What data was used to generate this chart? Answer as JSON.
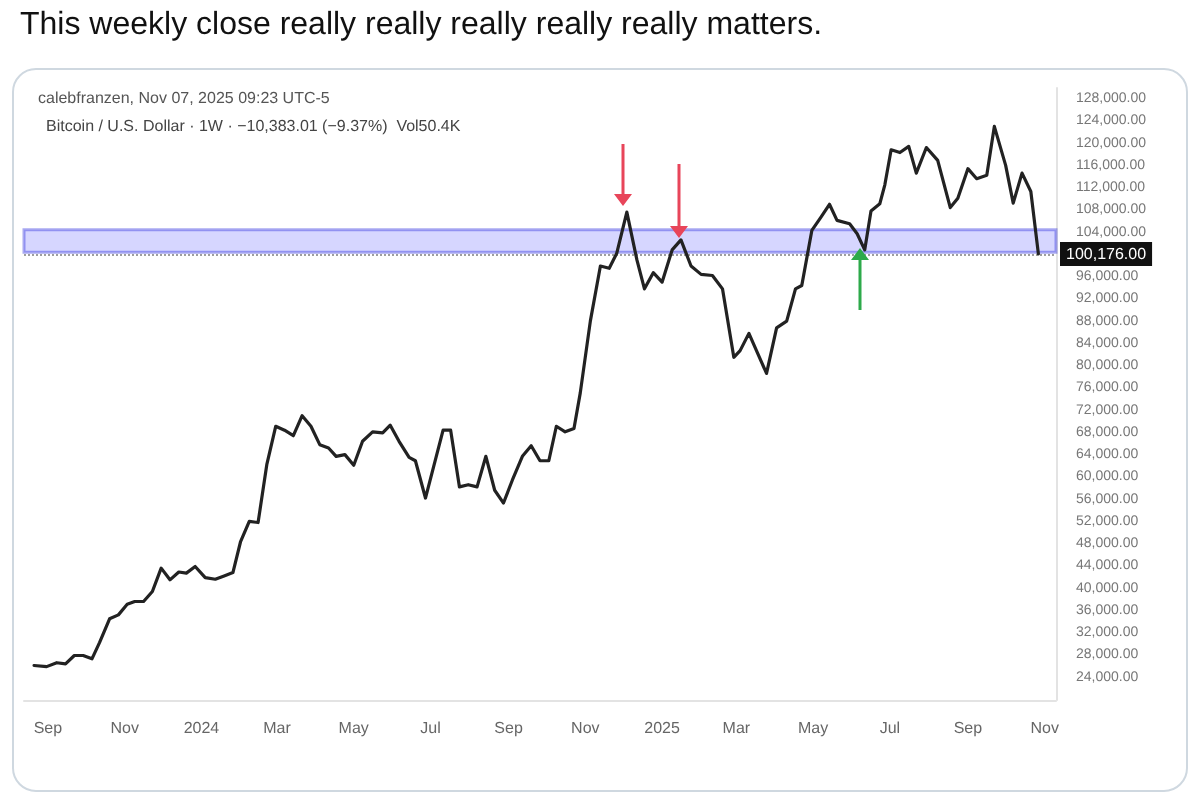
{
  "chart_data": {
    "type": "line",
    "title": "This weekly close really really really really really matters.",
    "subtitle": "Bitcoin / U.S. Dollar · 1W · −10,383.01 (−9.37%)  Vol50.4K",
    "annotations": [
      "calebfranzen, Nov 07, 2025 09:23 UTC-5"
    ],
    "x": [
      "2023-08-21",
      "2023-08-31",
      "2023-09-08",
      "2023-09-15",
      "2023-09-22",
      "2023-09-29",
      "2023-10-06",
      "2023-10-12",
      "2023-10-20",
      "2023-10-27",
      "2023-11-03",
      "2023-11-09",
      "2023-11-16",
      "2023-11-23",
      "2023-11-30",
      "2023-12-07",
      "2023-12-14",
      "2023-12-20",
      "2023-12-27",
      "2024-01-04",
      "2024-01-12",
      "2024-01-19",
      "2024-01-26",
      "2024-02-01",
      "2024-02-08",
      "2024-02-15",
      "2024-02-22",
      "2024-02-29",
      "2024-03-07",
      "2024-03-14",
      "2024-03-21",
      "2024-03-28",
      "2024-04-04",
      "2024-04-11",
      "2024-04-17",
      "2024-04-24",
      "2024-05-01",
      "2024-05-08",
      "2024-05-16",
      "2024-05-24",
      "2024-05-30",
      "2024-06-06",
      "2024-06-14",
      "2024-06-19",
      "2024-06-27",
      "2024-07-04",
      "2024-07-11",
      "2024-07-17",
      "2024-07-24",
      "2024-07-31",
      "2024-08-07",
      "2024-08-14",
      "2024-08-21",
      "2024-08-28",
      "2024-09-04",
      "2024-09-12",
      "2024-09-19",
      "2024-09-26",
      "2024-10-03",
      "2024-10-09",
      "2024-10-16",
      "2024-10-23",
      "2024-10-28",
      "2024-11-05",
      "2024-11-13",
      "2024-11-20",
      "2024-11-26",
      "2024-12-04",
      "2024-12-12",
      "2024-12-18",
      "2024-12-25",
      "2025-01-01",
      "2025-01-09",
      "2025-01-16",
      "2025-01-24",
      "2025-02-01",
      "2025-02-10",
      "2025-02-18",
      "2025-02-27",
      "2025-03-04",
      "2025-03-11",
      "2025-03-17",
      "2025-03-25",
      "2025-04-02",
      "2025-04-10",
      "2025-04-17",
      "2025-04-22",
      "2025-04-30",
      "2025-05-07",
      "2025-05-14",
      "2025-05-20",
      "2025-05-30",
      "2025-06-05",
      "2025-06-11",
      "2025-06-16",
      "2025-06-23",
      "2025-06-27",
      "2025-07-02",
      "2025-07-09",
      "2025-07-16",
      "2025-07-22",
      "2025-07-30",
      "2025-08-08",
      "2025-08-18",
      "2025-08-24",
      "2025-09-01",
      "2025-09-08",
      "2025-09-16",
      "2025-09-22",
      "2025-10-01",
      "2025-10-07",
      "2025-10-14",
      "2025-10-21",
      "2025-10-27"
    ],
    "series": [
      {
        "color": "#222222",
        "values": [
          26200,
          26000,
          26700,
          26500,
          28000,
          28000,
          27400,
          30300,
          34600,
          35300,
          37200,
          37700,
          37700,
          39500,
          43700,
          41600,
          43000,
          42800,
          44000,
          42000,
          41700,
          42300,
          42900,
          48400,
          52100,
          51900,
          62400,
          69200,
          68500,
          67500,
          71100,
          69200,
          65900,
          65300,
          63800,
          64100,
          62200,
          66500,
          68200,
          68000,
          69400,
          66500,
          63600,
          63000,
          56300,
          62400,
          68500,
          68500,
          58300,
          58700,
          58300,
          63800,
          57700,
          55400,
          59500,
          63800,
          65700,
          63000,
          63000,
          69200,
          68200,
          68800,
          75200,
          88100,
          98000,
          97600,
          100300,
          107700,
          99100,
          93900,
          96800,
          95100,
          100900,
          102700,
          98000,
          96500,
          96300,
          93900,
          81600,
          82800,
          85900,
          82800,
          78700,
          86900,
          88100,
          93900,
          94500,
          104400,
          106700,
          109100,
          106200,
          105600,
          103800,
          100900,
          107900,
          109200,
          112600,
          118900,
          118400,
          119500,
          114700,
          119300,
          117000,
          108500,
          110200,
          115500,
          113700,
          114300,
          123100,
          116100,
          109300,
          114700,
          111400,
          100176
        ]
      }
    ],
    "xlim": [
      "2023-08-13",
      "2025-11-10"
    ],
    "xticks": [
      {
        "value": "2023-09-01",
        "label": "Sep"
      },
      {
        "value": "2023-11-01",
        "label": "Nov"
      },
      {
        "value": "2024-01-01",
        "label": "2024"
      },
      {
        "value": "2024-03-01",
        "label": "Mar"
      },
      {
        "value": "2024-05-01",
        "label": "May"
      },
      {
        "value": "2024-07-01",
        "label": "Jul"
      },
      {
        "value": "2024-09-01",
        "label": "Sep"
      },
      {
        "value": "2024-11-01",
        "label": "Nov"
      },
      {
        "value": "2025-01-01",
        "label": "2025"
      },
      {
        "value": "2025-03-01",
        "label": "Mar"
      },
      {
        "value": "2025-05-01",
        "label": "May"
      },
      {
        "value": "2025-07-01",
        "label": "Jul"
      },
      {
        "value": "2025-09-01",
        "label": "Sep"
      },
      {
        "value": "2025-11-01",
        "label": "Nov"
      }
    ],
    "ylim": [
      20000,
      130000
    ],
    "yticks": [
      {
        "value": 24000,
        "label": "24,000.00"
      },
      {
        "value": 28000,
        "label": "28,000.00"
      },
      {
        "value": 32000,
        "label": "32,000.00"
      },
      {
        "value": 36000,
        "label": "36,000.00"
      },
      {
        "value": 40000,
        "label": "40,000.00"
      },
      {
        "value": 44000,
        "label": "44,000.00"
      },
      {
        "value": 48000,
        "label": "48,000.00"
      },
      {
        "value": 52000,
        "label": "52,000.00"
      },
      {
        "value": 56000,
        "label": "56,000.00"
      },
      {
        "value": 60000,
        "label": "60,000.00"
      },
      {
        "value": 64000,
        "label": "64,000.00"
      },
      {
        "value": 68000,
        "label": "68,000.00"
      },
      {
        "value": 72000,
        "label": "72,000.00"
      },
      {
        "value": 76000,
        "label": "76,000.00"
      },
      {
        "value": 80000,
        "label": "80,000.00"
      },
      {
        "value": 84000,
        "label": "84,000.00"
      },
      {
        "value": 88000,
        "label": "88,000.00"
      },
      {
        "value": 92000,
        "label": "92,000.00"
      },
      {
        "value": 96000,
        "label": "96,000.00"
      },
      {
        "value": 100000,
        "label": null
      },
      {
        "value": 104000,
        "label": "104,000.00"
      },
      {
        "value": 108000,
        "label": "108,000.00"
      },
      {
        "value": 112000,
        "label": "112,000.00"
      },
      {
        "value": 116000,
        "label": "116,000.00"
      },
      {
        "value": 120000,
        "label": "120,000.00"
      },
      {
        "value": 124000,
        "label": "124,000.00"
      },
      {
        "value": 128000,
        "label": "128,000.00"
      }
    ],
    "ref_lines": [
      {
        "axis": "y",
        "value": 100176,
        "label": "100,176.00",
        "color": "#9e9e9e",
        "line_style": "dotted"
      }
    ],
    "bands": [
      {
        "axis": "y",
        "from": 100500,
        "to": 104500,
        "color": "#9999ff"
      }
    ],
    "marker": "none",
    "line_style": "solid",
    "grid": false
  }
}
